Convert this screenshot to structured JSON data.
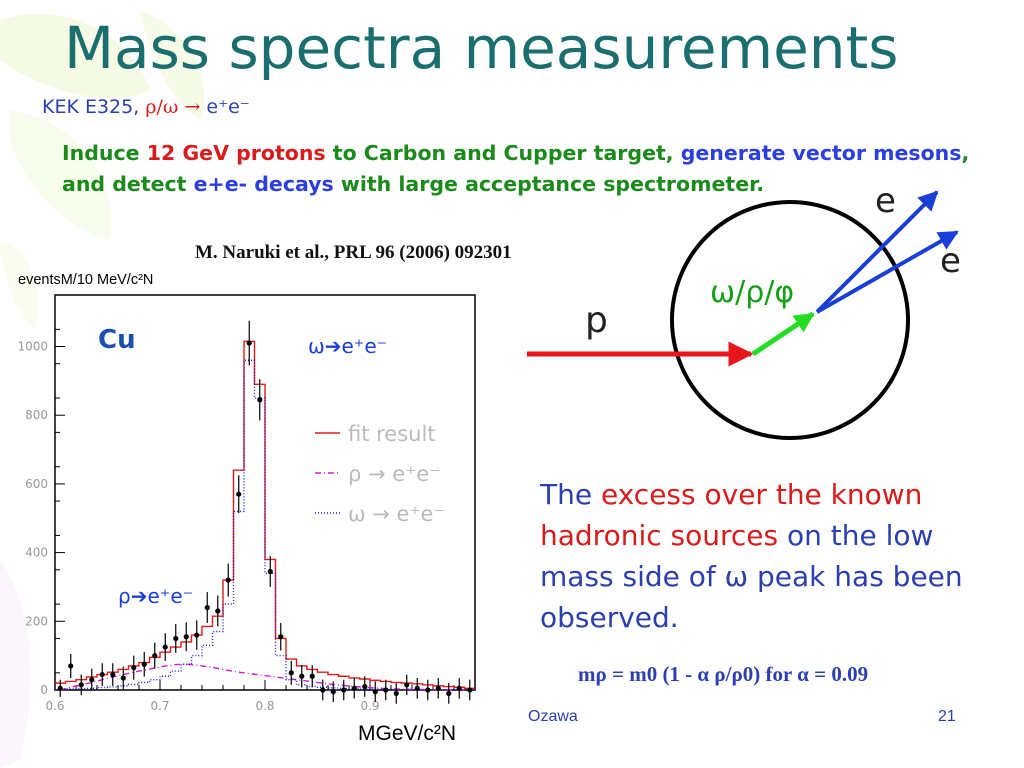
{
  "slide": {
    "title": "Mass spectra measurements",
    "subtitle_prefix": "KEK E325, ",
    "subtitle_symbols": "ρ/ω → ",
    "subtitle_suffix": "e⁺e⁻",
    "description_parts": [
      {
        "text": "Induce ",
        "color": "green"
      },
      {
        "text": "12 GeV protons",
        "color": "red"
      },
      {
        "text": " to Carbon and Cupper target, ",
        "color": "green"
      },
      {
        "text": "generate vector mesons",
        "color": "blue"
      },
      {
        "text": ", and detect ",
        "color": "green"
      },
      {
        "text": "e+e- decays",
        "color": "blue"
      },
      {
        "text": " with large acceptance spectrometer.",
        "color": "green"
      }
    ],
    "reference": "M. Naruki et al., PRL 96 (2006) 092301",
    "excess_lead": "The ",
    "excess_red": "excess over the known hadronic sources",
    "excess_tail": " on the low mass side of ω peak has been observed.",
    "formula": "mρ = m0 (1 - α ρ/ρ0)  for α = 0.09",
    "footer_author": "Ozawa",
    "footer_page": "21",
    "colors": {
      "title": "#1b6e6e",
      "blue_text": "#2b3fb0",
      "red": "#d81c1c",
      "green": "#1a8a1a"
    }
  },
  "diagram": {
    "beam_label": "p",
    "meson_label": "ω/ρ/φ",
    "electron_label_1": "e",
    "electron_label_2": "e",
    "colors": {
      "beam": "#e8151b",
      "meson": "#22dd22",
      "electrons": "#1a3fd8",
      "ring": "#000000"
    }
  },
  "chart_data": {
    "type": "bar",
    "target_label": "Cu",
    "ylabel": "eventsM/10 MeV/c²N",
    "xlabel": "MGeV/c²N",
    "xlim": [
      0.6,
      1.0
    ],
    "ylim": [
      0,
      1150
    ],
    "xticks": [
      0.6,
      0.7,
      0.8,
      0.9
    ],
    "yticks": [
      0,
      200,
      400,
      600,
      800,
      1000
    ],
    "bin_width": 0.01,
    "legend": [
      {
        "label": "fit result",
        "style": "solid",
        "color": "#e11b1b"
      },
      {
        "label": "ρ → e⁺e⁻",
        "style": "dash-dot",
        "color": "#d01ad0"
      },
      {
        "label": "ω → e⁺e⁻",
        "style": "dotted",
        "color": "#1a1ad0"
      }
    ],
    "peak_label_omega": "ω➔e⁺e⁻",
    "peak_label_rho": "ρ➔e⁺e⁻",
    "data_points": [
      {
        "x": 0.605,
        "y": 5,
        "err": 25
      },
      {
        "x": 0.615,
        "y": 70,
        "err": 35
      },
      {
        "x": 0.625,
        "y": 15,
        "err": 30
      },
      {
        "x": 0.635,
        "y": 30,
        "err": 32
      },
      {
        "x": 0.645,
        "y": 45,
        "err": 33
      },
      {
        "x": 0.655,
        "y": 45,
        "err": 33
      },
      {
        "x": 0.665,
        "y": 35,
        "err": 33
      },
      {
        "x": 0.675,
        "y": 65,
        "err": 35
      },
      {
        "x": 0.685,
        "y": 75,
        "err": 36
      },
      {
        "x": 0.695,
        "y": 100,
        "err": 38
      },
      {
        "x": 0.705,
        "y": 125,
        "err": 40
      },
      {
        "x": 0.715,
        "y": 150,
        "err": 42
      },
      {
        "x": 0.725,
        "y": 155,
        "err": 42
      },
      {
        "x": 0.735,
        "y": 160,
        "err": 43
      },
      {
        "x": 0.745,
        "y": 240,
        "err": 45
      },
      {
        "x": 0.755,
        "y": 230,
        "err": 45
      },
      {
        "x": 0.765,
        "y": 320,
        "err": 48
      },
      {
        "x": 0.775,
        "y": 570,
        "err": 55
      },
      {
        "x": 0.785,
        "y": 1010,
        "err": 65
      },
      {
        "x": 0.795,
        "y": 845,
        "err": 60
      },
      {
        "x": 0.805,
        "y": 345,
        "err": 45
      },
      {
        "x": 0.815,
        "y": 155,
        "err": 40
      },
      {
        "x": 0.825,
        "y": 50,
        "err": 35
      },
      {
        "x": 0.835,
        "y": 40,
        "err": 33
      },
      {
        "x": 0.845,
        "y": 40,
        "err": 32
      },
      {
        "x": 0.855,
        "y": 0,
        "err": 30
      },
      {
        "x": 0.865,
        "y": -5,
        "err": 30
      },
      {
        "x": 0.875,
        "y": 0,
        "err": 30
      },
      {
        "x": 0.885,
        "y": 5,
        "err": 30
      },
      {
        "x": 0.895,
        "y": 10,
        "err": 30
      },
      {
        "x": 0.905,
        "y": -5,
        "err": 30
      },
      {
        "x": 0.915,
        "y": 0,
        "err": 30
      },
      {
        "x": 0.925,
        "y": -10,
        "err": 30
      },
      {
        "x": 0.935,
        "y": 15,
        "err": 30
      },
      {
        "x": 0.945,
        "y": 5,
        "err": 30
      },
      {
        "x": 0.955,
        "y": 0,
        "err": 30
      },
      {
        "x": 0.965,
        "y": 5,
        "err": 30
      },
      {
        "x": 0.975,
        "y": -10,
        "err": 30
      },
      {
        "x": 0.985,
        "y": 5,
        "err": 30
      },
      {
        "x": 0.995,
        "y": 0,
        "err": 30
      }
    ],
    "series": [
      {
        "name": "fit result",
        "values": [
          20,
          25,
          30,
          38,
          45,
          52,
          60,
          70,
          80,
          95,
          110,
          125,
          140,
          160,
          185,
          215,
          320,
          640,
          1015,
          890,
          380,
          150,
          90,
          70,
          60,
          52,
          45,
          40,
          35,
          32,
          28,
          25,
          22,
          20,
          18,
          15,
          12,
          10,
          8,
          5
        ]
      },
      {
        "name": "ρ → e⁺e⁻",
        "values": [
          0,
          8,
          15,
          22,
          30,
          38,
          45,
          52,
          58,
          64,
          70,
          74,
          75,
          72,
          68,
          63,
          57,
          52,
          48,
          44,
          40,
          36,
          32,
          28,
          24,
          20,
          16,
          13,
          10,
          8,
          6,
          4,
          3,
          2,
          2,
          1,
          1,
          0,
          0,
          0
        ]
      },
      {
        "name": "ω → e⁺e⁻",
        "values": [
          2,
          3,
          4,
          5,
          7,
          9,
          12,
          16,
          22,
          30,
          40,
          55,
          75,
          100,
          130,
          170,
          250,
          520,
          960,
          850,
          340,
          100,
          30,
          15,
          10,
          8,
          6,
          5,
          4,
          3,
          2,
          2,
          1,
          1,
          1,
          0,
          0,
          0,
          0,
          0
        ]
      }
    ]
  }
}
